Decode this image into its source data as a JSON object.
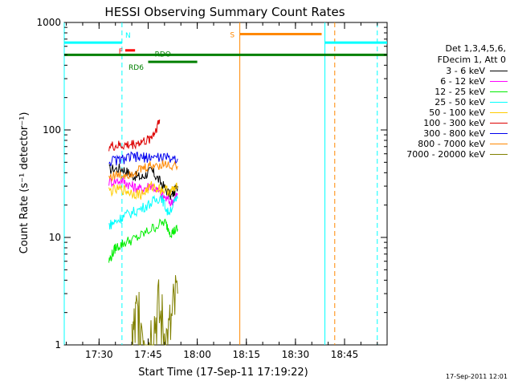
{
  "chart_data": {
    "type": "line",
    "title": "HESSI Observing Summary Count Rates",
    "xlabel": "Start Time (17-Sep-11 17:19:22)",
    "ylabel": "Count Rate (s⁻¹ detector⁻¹)",
    "y_scale": "log",
    "ylim": [
      1,
      1000
    ],
    "xlim": [
      "17:19:22",
      "18:58:00"
    ],
    "x_tick_labels": [
      "17:30",
      "17:45",
      "18:00",
      "18:15",
      "18:30",
      "18:45"
    ],
    "y_tick_labels": [
      "1",
      "10",
      "100",
      "1000"
    ],
    "legend_header": [
      "Det 1,3,4,5,6,",
      "FDecim 1, Att 0"
    ],
    "series": [
      {
        "name": "3 - 6 keV",
        "color": "#000000",
        "x": [
          "17:33:00",
          "17:37:00",
          "17:40:00",
          "17:43:00",
          "17:46:00",
          "17:49:00",
          "17:52:00",
          "17:54:00"
        ],
        "values": [
          43,
          44,
          38,
          36,
          42,
          32,
          24,
          30
        ]
      },
      {
        "name": "6 - 12 keV",
        "color": "#ff00ff",
        "x": [
          "17:33:00",
          "17:37:00",
          "17:40:00",
          "17:43:00",
          "17:46:00",
          "17:49:00",
          "17:52:00",
          "17:54:00"
        ],
        "values": [
          33,
          34,
          30,
          28,
          31,
          25,
          21,
          25
        ]
      },
      {
        "name": "12 - 25 keV",
        "color": "#00ee00",
        "x": [
          "17:33:00",
          "17:35:00",
          "17:38:00",
          "17:42:00",
          "17:46:00",
          "17:50:00",
          "17:52:00",
          "17:54:00"
        ],
        "values": [
          6,
          8,
          9,
          10,
          12,
          14,
          11,
          12
        ]
      },
      {
        "name": "25 - 50 keV",
        "color": "#00ffff",
        "x": [
          "17:33:00",
          "17:35:00",
          "17:38:00",
          "17:42:00",
          "17:46:00",
          "17:49:00",
          "17:51:00",
          "17:54:00"
        ],
        "values": [
          13,
          14,
          16,
          18,
          21,
          24,
          17,
          23
        ]
      },
      {
        "name": "50 - 100 keV",
        "color": "#ffcc00",
        "x": [
          "17:33:00",
          "17:37:00",
          "17:40:00",
          "17:43:00",
          "17:46:00",
          "17:49:00",
          "17:52:00",
          "17:54:00"
        ],
        "values": [
          27,
          28,
          26,
          25,
          30,
          28,
          27,
          29
        ]
      },
      {
        "name": "100 - 300 keV",
        "color": "#dd0000",
        "x": [
          "17:33:00",
          "17:36:00",
          "17:39:00",
          "17:42:00",
          "17:45:00",
          "17:47:00",
          "17:48:30"
        ],
        "values": [
          70,
          71,
          72,
          76,
          80,
          95,
          125
        ]
      },
      {
        "name": "300 - 800 keV",
        "color": "#0000ee",
        "x": [
          "17:33:00",
          "17:37:00",
          "17:40:00",
          "17:43:00",
          "17:46:00",
          "17:50:00",
          "17:54:00"
        ],
        "values": [
          51,
          53,
          56,
          55,
          56,
          55,
          54
        ]
      },
      {
        "name": "800 - 7000 keV",
        "color": "#ff8800",
        "x": [
          "17:33:00",
          "17:37:00",
          "17:40:00",
          "17:43:00",
          "17:46:00",
          "17:50:00",
          "17:54:00"
        ],
        "values": [
          37,
          38,
          40,
          43,
          47,
          48,
          46
        ]
      },
      {
        "name": "7000 - 20000 keV",
        "color": "#808000",
        "x": [
          "17:40:00",
          "17:42:00",
          "17:45:00",
          "17:48:00",
          "17:51:00",
          "17:54:00"
        ],
        "values": [
          1,
          2,
          1,
          2,
          1,
          3
        ]
      }
    ],
    "flag_bars": [
      {
        "label": "N",
        "color": "#00ffff",
        "y": 650,
        "segments": [
          [
            "17:19:22",
            "17:37:00"
          ],
          [
            "18:39:00",
            "18:58:00"
          ]
        ]
      },
      {
        "label": "F",
        "color": "#ff0000",
        "y": 550,
        "segments": [
          [
            "17:38:00",
            "17:41:00"
          ]
        ]
      },
      {
        "label": "RDO",
        "color": "#008000",
        "y": 500,
        "segments": [
          [
            "17:19:22",
            "18:58:00"
          ]
        ]
      },
      {
        "label": "RD6",
        "color": "#008000",
        "y": 430,
        "segments": [
          [
            "17:45:00",
            "18:00:00"
          ]
        ]
      },
      {
        "label": "S",
        "color": "#ff8800",
        "y": 780,
        "segments": [
          [
            "18:13:00",
            "18:38:00"
          ]
        ]
      }
    ],
    "vertical_markers": [
      {
        "color": "#00ffff",
        "style": "solid",
        "x": "17:19:22"
      },
      {
        "color": "#00ffff",
        "style": "dashed",
        "x": "17:37:00"
      },
      {
        "color": "#ff8800",
        "style": "solid",
        "x": "18:13:00"
      },
      {
        "color": "#00ffff",
        "style": "solid",
        "x": "18:39:00"
      },
      {
        "color": "#ff8800",
        "style": "dashed",
        "x": "18:42:00"
      },
      {
        "color": "#00ffff",
        "style": "dashed",
        "x": "18:55:00"
      }
    ]
  },
  "footer": {
    "stamp": "17-Sep-2011 12:01"
  }
}
